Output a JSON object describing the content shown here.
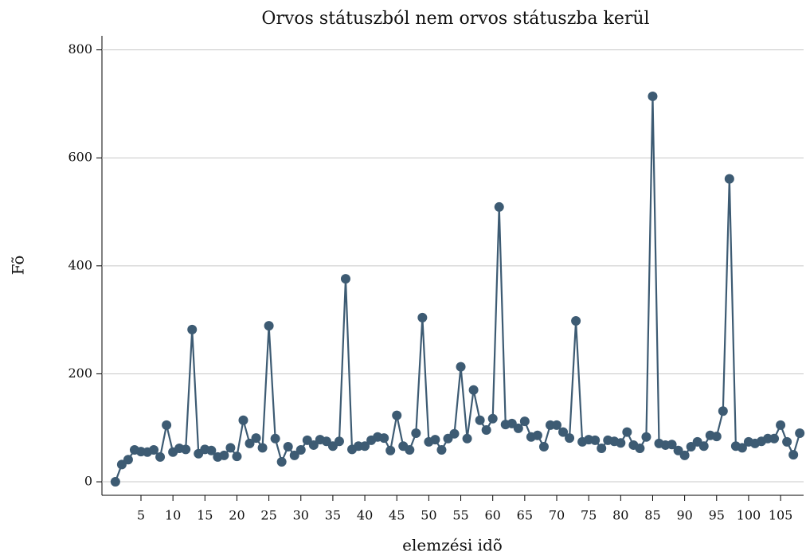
{
  "chart_data": {
    "type": "line",
    "title": "Orvos státuszból nem orvos státuszba kerül",
    "x_label": "elemzési idõ",
    "y_label": "Fõ",
    "x": [
      1,
      2,
      3,
      4,
      5,
      6,
      7,
      8,
      9,
      10,
      11,
      12,
      13,
      14,
      15,
      16,
      17,
      18,
      19,
      20,
      21,
      22,
      23,
      24,
      25,
      26,
      27,
      28,
      29,
      30,
      31,
      32,
      33,
      34,
      35,
      36,
      37,
      38,
      39,
      40,
      41,
      42,
      43,
      44,
      45,
      46,
      47,
      48,
      49,
      50,
      51,
      52,
      53,
      54,
      55,
      56,
      57,
      58,
      59,
      60,
      61,
      62,
      63,
      64,
      65,
      66,
      67,
      68,
      69,
      70,
      71,
      72,
      73,
      74,
      75,
      76,
      77,
      78,
      79,
      80,
      81,
      82,
      83,
      84,
      85,
      86,
      87,
      88,
      89,
      90,
      91,
      92,
      93,
      94,
      95,
      96,
      97,
      98,
      99,
      100,
      101,
      102,
      103,
      104,
      105,
      106,
      107,
      108
    ],
    "series": [
      {
        "name": "Fõ",
        "color": "#3d5b73",
        "values": [
          0,
          32,
          41,
          59,
          56,
          55,
          59,
          46,
          105,
          55,
          62,
          60,
          282,
          52,
          60,
          58,
          46,
          49,
          63,
          47,
          114,
          71,
          81,
          63,
          289,
          80,
          37,
          65,
          49,
          59,
          77,
          68,
          78,
          75,
          66,
          75,
          376,
          60,
          66,
          66,
          77,
          83,
          81,
          58,
          123,
          66,
          59,
          90,
          304,
          74,
          78,
          59,
          80,
          89,
          213,
          80,
          170,
          114,
          96,
          117,
          509,
          106,
          108,
          99,
          112,
          83,
          86,
          65,
          105,
          105,
          92,
          81,
          298,
          74,
          78,
          77,
          62,
          77,
          75,
          72,
          92,
          68,
          62,
          83,
          714,
          71,
          68,
          69,
          58,
          49,
          65,
          74,
          66,
          86,
          84,
          131,
          561,
          66,
          63,
          74,
          71,
          75,
          80,
          80,
          105,
          74,
          50,
          90
        ]
      }
    ],
    "xlim": [
      -1.1,
      108.6
    ],
    "ylim": [
      -25,
      826
    ],
    "xticks": [
      5,
      10,
      15,
      20,
      25,
      30,
      35,
      40,
      45,
      50,
      55,
      60,
      65,
      70,
      75,
      80,
      85,
      90,
      95,
      100,
      105
    ],
    "yticks": [
      0,
      200,
      400,
      600,
      800
    ],
    "grid": true
  }
}
